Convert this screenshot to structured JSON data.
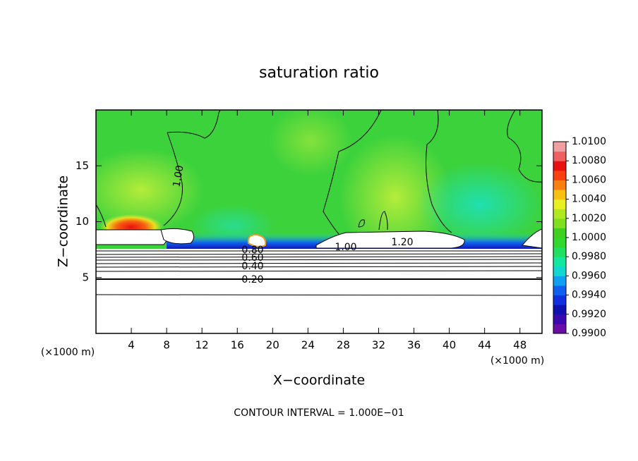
{
  "chart_data": {
    "type": "contour",
    "title": "saturation ratio",
    "xlabel": "X−coordinate",
    "ylabel": "Z−coordinate",
    "x_unit": "(×1000 m)",
    "footer": "CONTOUR INTERVAL = 1.000E−01",
    "xlim": [
      0,
      50.5
    ],
    "ylim": [
      0,
      20
    ],
    "xticks": [
      4,
      8,
      12,
      16,
      20,
      24,
      28,
      32,
      36,
      40,
      44,
      48
    ],
    "yticks": [
      5,
      10,
      15
    ],
    "contour_labels": [
      "1.00",
      "0.80",
      "0.60",
      "0.40",
      "0.20",
      "1.00",
      "1.20"
    ],
    "colorbar": {
      "lim": [
        0.99,
        1.01
      ],
      "ticks": [
        {
          "value": 0.99,
          "label": "0.9900"
        },
        {
          "value": 0.992,
          "label": "0.9920"
        },
        {
          "value": 0.994,
          "label": "0.9940"
        },
        {
          "value": 0.996,
          "label": "0.9960"
        },
        {
          "value": 0.998,
          "label": "0.9980"
        },
        {
          "value": 1.0,
          "label": "1.0000"
        },
        {
          "value": 1.002,
          "label": "1.0020"
        },
        {
          "value": 1.004,
          "label": "1.0040"
        },
        {
          "value": 1.006,
          "label": "1.0060"
        },
        {
          "value": 1.008,
          "label": "1.0080"
        },
        {
          "value": 1.01,
          "label": "1.0100"
        }
      ],
      "colors": [
        "#6a0ca8",
        "#3a0ab0",
        "#1010b0",
        "#1030e0",
        "#1060f0",
        "#10a0f0",
        "#10d8d0",
        "#10e8a0",
        "#20e060",
        "#30d830",
        "#40d020",
        "#80e020",
        "#b0e820",
        "#e8f020",
        "#f8c010",
        "#f88010",
        "#f84010",
        "#e81010",
        "#f06060",
        "#f0a0a0"
      ]
    }
  }
}
